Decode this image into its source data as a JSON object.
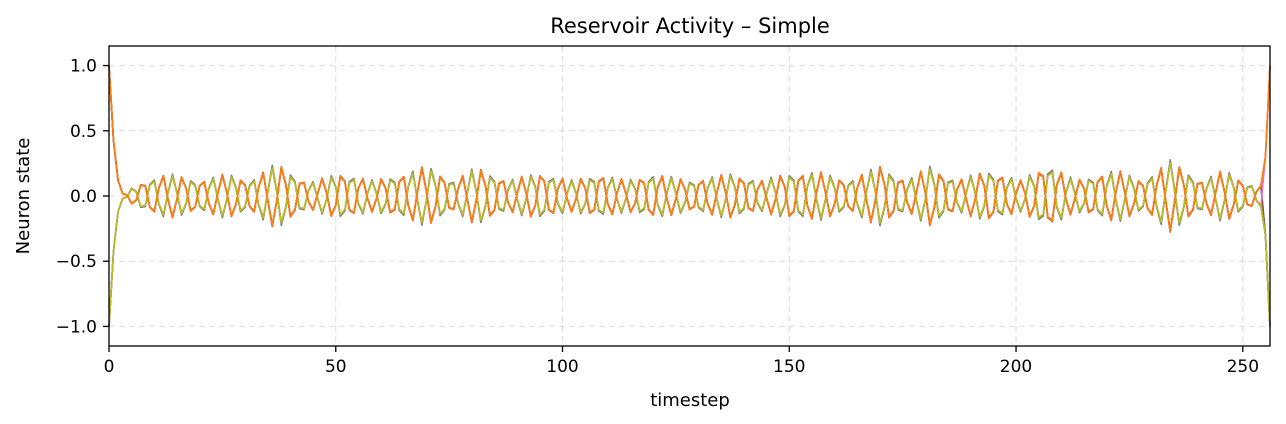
{
  "chart_data": {
    "type": "line",
    "title": "Reservoir Activity – Simple",
    "xlabel": "timestep",
    "ylabel": "Neuron state",
    "xlim": [
      0,
      256
    ],
    "ylim": [
      -1.15,
      1.15
    ],
    "xticks": [
      0,
      50,
      100,
      150,
      200,
      250
    ],
    "xtick_labels": [
      "0",
      "50",
      "100",
      "150",
      "200",
      "250"
    ],
    "yticks": [
      1.0,
      0.5,
      0.0,
      -0.5,
      -1.0
    ],
    "ytick_labels": [
      "1.0",
      "0.5",
      "0.0",
      "−0.5",
      "−1.0"
    ],
    "grid": true,
    "legend": "none",
    "n_steps": 256,
    "oscillation_period_steps": 4.4,
    "amplitude_envelope": [
      [
        3,
        0.02
      ],
      [
        8,
        0.12
      ],
      [
        13,
        0.17
      ],
      [
        20,
        0.12
      ],
      [
        26,
        0.17
      ],
      [
        31,
        0.12
      ],
      [
        37,
        0.25
      ],
      [
        44,
        0.1
      ],
      [
        51,
        0.18
      ],
      [
        58,
        0.12
      ],
      [
        66,
        0.18
      ],
      [
        70,
        0.23
      ],
      [
        76,
        0.12
      ],
      [
        81,
        0.22
      ],
      [
        88,
        0.12
      ],
      [
        95,
        0.18
      ],
      [
        102,
        0.12
      ],
      [
        108,
        0.17
      ],
      [
        114,
        0.12
      ],
      [
        120,
        0.17
      ],
      [
        128,
        0.12
      ],
      [
        137,
        0.17
      ],
      [
        144,
        0.12
      ],
      [
        150,
        0.18
      ],
      [
        157,
        0.18
      ],
      [
        163,
        0.12
      ],
      [
        170,
        0.23
      ],
      [
        176,
        0.12
      ],
      [
        181,
        0.23
      ],
      [
        187,
        0.12
      ],
      [
        194,
        0.2
      ],
      [
        201,
        0.12
      ],
      [
        207,
        0.25
      ],
      [
        213,
        0.12
      ],
      [
        222,
        0.2
      ],
      [
        228,
        0.12
      ],
      [
        234,
        0.27
      ],
      [
        241,
        0.12
      ],
      [
        246,
        0.2
      ],
      [
        251,
        0.1
      ],
      [
        253,
        0.08
      ]
    ],
    "series": [
      {
        "color": "#1f77b4",
        "sign": 1,
        "scale": 1.0,
        "start": 1.0,
        "end": -1.0
      },
      {
        "color": "#ff7f0e",
        "sign": 1,
        "scale": 0.97,
        "start": 1.0,
        "end": 1.0
      },
      {
        "color": "#2ca02c",
        "sign": -1,
        "scale": 0.95,
        "start": -1.0,
        "end": -1.0
      },
      {
        "color": "#d62728",
        "sign": 1,
        "scale": 1.02,
        "start": 1.0,
        "end": 1.0
      },
      {
        "color": "#9467bd",
        "sign": -1,
        "scale": 1.0,
        "start": -1.0,
        "end": -1.0
      },
      {
        "color": "#8c564b",
        "sign": 1,
        "scale": 0.99,
        "start": 1.0,
        "end": -1.0
      },
      {
        "color": "#e377c2",
        "sign": -1,
        "scale": 0.96,
        "start": -1.0,
        "end": 1.0
      },
      {
        "color": "#7f7f7f",
        "sign": -1,
        "scale": 1.03,
        "start": -1.0,
        "end": -1.0
      },
      {
        "color": "#bcbd22",
        "sign": -1,
        "scale": 0.94,
        "start": -1.0,
        "end": -1.0
      },
      {
        "color": "#ff7f0e",
        "sign": 1,
        "scale": 1.0,
        "start": 1.0,
        "end": 1.0
      }
    ]
  }
}
